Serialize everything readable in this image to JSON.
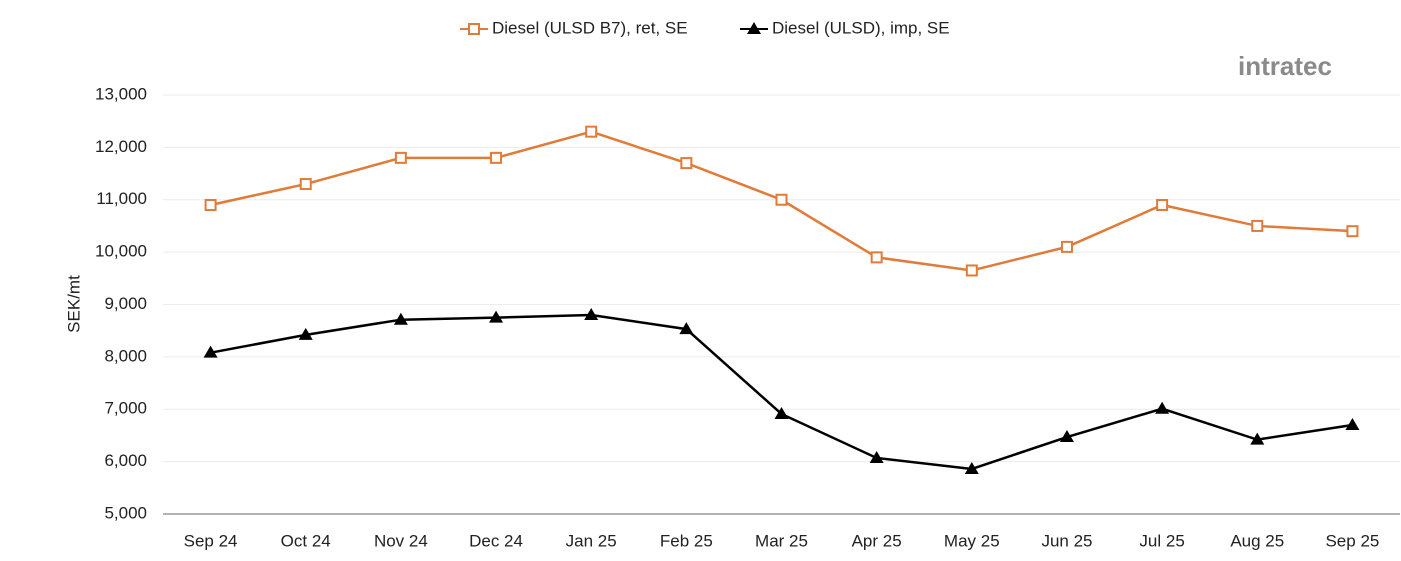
{
  "chart_data": {
    "type": "line",
    "y_label": "SEK/mt",
    "logo": "intratec",
    "categories": [
      "Sep 24",
      "Oct 24",
      "Nov 24",
      "Dec 24",
      "Jan 25",
      "Feb 25",
      "Mar 25",
      "Apr 25",
      "May 25",
      "Jun 25",
      "Jul 25",
      "Aug 25",
      "Sep 25"
    ],
    "series": [
      {
        "name": "Diesel (ULSD B7), ret, SE",
        "color": "#e07b39",
        "marker": "square",
        "values": [
          10900,
          11300,
          11800,
          11800,
          12300,
          11700,
          11000,
          9900,
          9650,
          10100,
          10900,
          10500,
          10400
        ]
      },
      {
        "name": "Diesel (ULSD), imp, SE",
        "color": "#000000",
        "marker": "triangle",
        "values": [
          8080,
          8420,
          8710,
          8750,
          8800,
          8530,
          6910,
          6070,
          5860,
          6470,
          7010,
          6420,
          6700
        ]
      }
    ],
    "ylim": [
      5000,
      13000
    ],
    "yticks": [
      {
        "value": 5000,
        "label": "5,000"
      },
      {
        "value": 6000,
        "label": "6,000"
      },
      {
        "value": 7000,
        "label": "7,000"
      },
      {
        "value": 8000,
        "label": "8,000"
      },
      {
        "value": 9000,
        "label": "9,000"
      },
      {
        "value": 10000,
        "label": "10,000"
      },
      {
        "value": 11000,
        "label": "11,000"
      },
      {
        "value": 12000,
        "label": "12,000"
      },
      {
        "value": 13000,
        "label": "13,000"
      }
    ],
    "grid": true
  }
}
